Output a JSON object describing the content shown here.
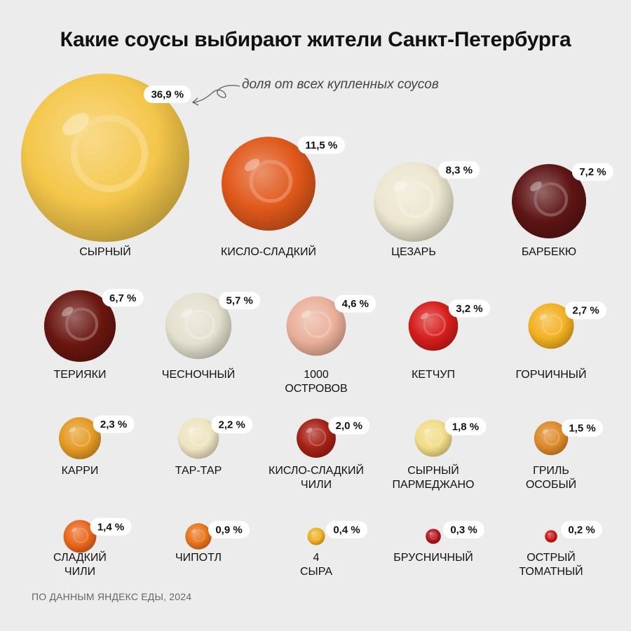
{
  "title": "Какие соусы выбирают жители Санкт-Петербурга",
  "note": "доля от всех купленных соусов",
  "source": "ПО ДАННЫМ ЯНДЕКС ЕДЫ, 2024",
  "colors": {
    "background": "#ececec",
    "badge": "#ffffff"
  },
  "chart_data": {
    "type": "bubble",
    "unit": "%",
    "categories": [
      "СЫРНЫЙ",
      "КИСЛО-СЛАДКИЙ",
      "ЦЕЗАРЬ",
      "БАРБЕКЮ",
      "ТЕРИЯКИ",
      "ЧЕСНОЧНЫЙ",
      "1000 ОСТРОВОВ",
      "КЕТЧУП",
      "ГОРЧИЧНЫЙ",
      "КАРРИ",
      "ТАР-ТАР",
      "КИСЛО-СЛАДКИЙ ЧИЛИ",
      "СЫРНЫЙ ПАРМЕДЖАНО",
      "ГРИЛЬ ОСОБЫЙ",
      "СЛАДКИЙ ЧИЛИ",
      "ЧИПОТЛ",
      "4 СЫРА",
      "БРУСНИЧНЫЙ",
      "ОСТРЫЙ ТОМАТНЫЙ"
    ],
    "values": [
      36.9,
      11.5,
      8.3,
      7.2,
      6.7,
      5.7,
      4.6,
      3.2,
      2.7,
      2.3,
      2.2,
      2.0,
      1.8,
      1.5,
      1.4,
      0.9,
      0.4,
      0.3,
      0.2
    ],
    "value_labels": [
      "36,9 %",
      "11,5 %",
      "8,3 %",
      "7,2 %",
      "6,7 %",
      "5,7 %",
      "4,6 %",
      "3,2 %",
      "2,7 %",
      "2,3 %",
      "2,2 %",
      "2,0 %",
      "1,8 %",
      "1,5 %",
      "1,4 %",
      "0,9 %",
      "0,4 %",
      "0,3 %",
      "0,2 %"
    ],
    "colors": [
      "#f4c64a",
      "#e0581a",
      "#ece6d0",
      "#5e1414",
      "#6a1610",
      "#e3e0cf",
      "#eab09a",
      "#d51d1b",
      "#f3b121",
      "#e49a22",
      "#eee4c0",
      "#a52015",
      "#f1dc86",
      "#dc8a28",
      "#e9661c",
      "#e8731a",
      "#eeb024",
      "#b3151c",
      "#c81616"
    ]
  }
}
